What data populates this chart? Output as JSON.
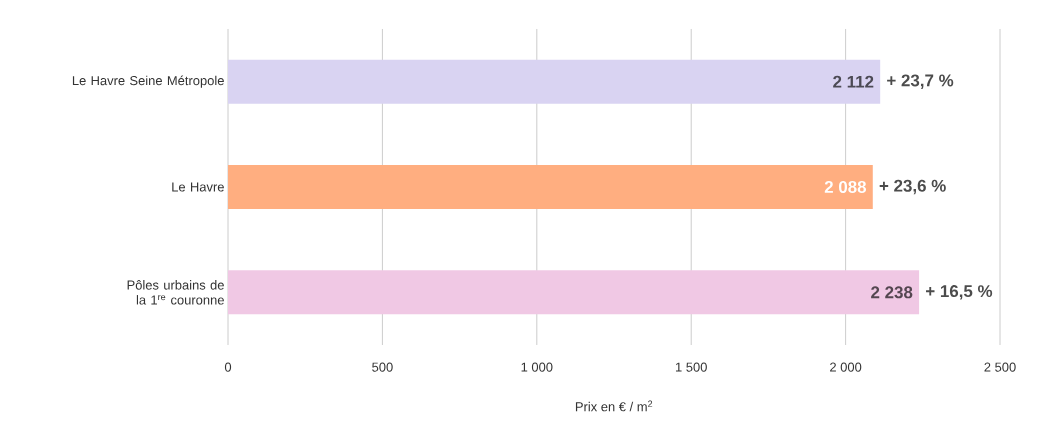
{
  "chart_data": {
    "type": "bar",
    "orientation": "horizontal",
    "categories": [
      "Le Havre Seine Métropole",
      "Le Havre",
      "Pôles urbains de la 1$^{re}$ couronne"
    ],
    "values": [
      2112,
      2088,
      2238
    ],
    "colors": [
      "#d9d3f2",
      "#ffae80",
      "#f0c8e4"
    ],
    "value_labels": [
      "2 112",
      "2 088",
      "2 238"
    ],
    "annotations": [
      {
        "text": "+ 23,7 %",
        "x": 2112,
        "y": "Le Havre Seine Métropole"
      },
      {
        "text": "+ 23,6 %",
        "x": 2088,
        "y": "Le Havre"
      },
      {
        "text": "+ 16,5 %",
        "x": 2238,
        "y": "Pôles urbains de la 1$^{re}$ couronne"
      }
    ],
    "xlabel": "Prix en € / m$^{2}$",
    "xlim": [
      0,
      2500
    ],
    "xticks": [
      0,
      500,
      {
        "value": 1000,
        "label": "1 000"
      },
      {
        "value": 1500,
        "label": "1 500"
      },
      {
        "value": 2000,
        "label": "2 000"
      },
      {
        "value": 2500,
        "label": "2 500"
      }
    ],
    "grid": "x"
  }
}
